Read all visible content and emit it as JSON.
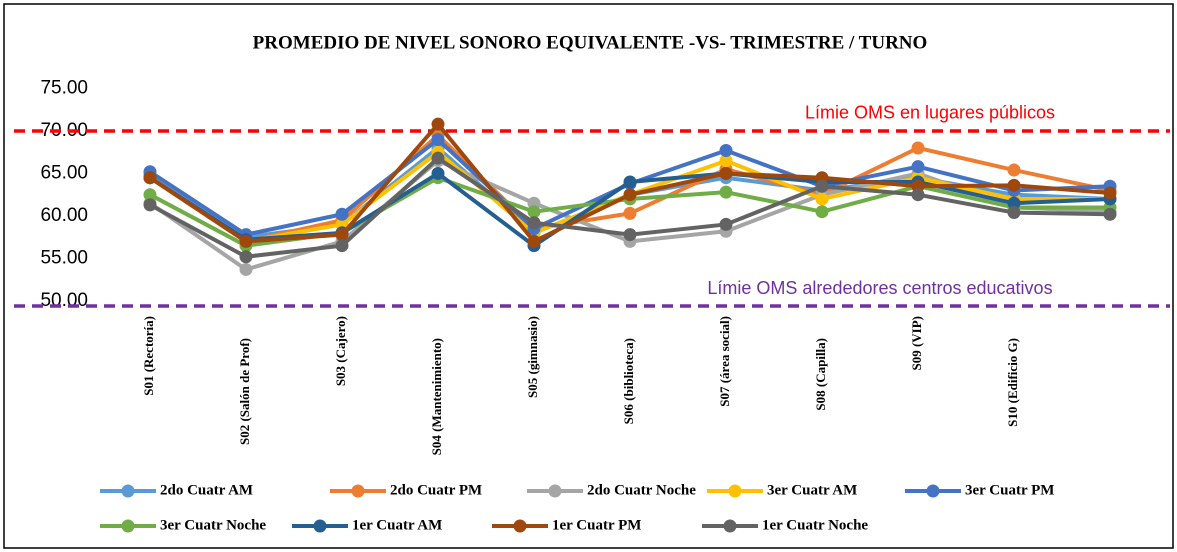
{
  "chart_data": {
    "type": "line",
    "title": "PROMEDIO DE NIVEL SONORO EQUIVALENTE -VS- TRIMESTRE / TURNO",
    "categories": [
      "S01 (Rectoría)",
      "S02 (Salón de Prof)",
      "S03 (Cajero)",
      "S04 (Mantenimiento)",
      "S05 (gimnasio)",
      "S06 (biblioteca)",
      "S07 (área social)",
      "S08 (Capilla)",
      "S09 (VIP)",
      "S10 (Edificio G)",
      null
    ],
    "ylim": [
      49.4,
      76
    ],
    "yticks": [
      {
        "value": 50,
        "label": "50.00"
      },
      {
        "value": 55,
        "label": "55.00"
      },
      {
        "value": 60,
        "label": "60.00"
      },
      {
        "value": 65,
        "label": "65.00"
      },
      {
        "value": 70,
        "label": "70.00"
      },
      {
        "value": 75,
        "label": "75.00"
      }
    ],
    "grid": false,
    "legend": "bottom",
    "reference_lines": [
      {
        "value": 70,
        "label": "Límie OMS en lugares públicos",
        "color": "#ff0000"
      },
      {
        "value": 49.4,
        "label": "Límie OMS alrededores centros educativos",
        "color": "#7030a0"
      }
    ],
    "series": [
      {
        "name": "2do Cuatr AM",
        "color": "#5b9bd5",
        "values": [
          64.8,
          57.5,
          59,
          68,
          58,
          62.5,
          64.5,
          63,
          64.5,
          62.5,
          62
        ]
      },
      {
        "name": "2do Cuatr PM",
        "color": "#ed7d31",
        "values": [
          64.5,
          57,
          59.5,
          69.5,
          58.5,
          60.3,
          65.5,
          62.5,
          68,
          65.4,
          63
        ]
      },
      {
        "name": "2do Cuatr Noche",
        "color": "#a5a5a5",
        "values": [
          61.5,
          53.7,
          57,
          66.5,
          61.5,
          57,
          58.2,
          62.5,
          65,
          61,
          60.5
        ]
      },
      {
        "name": "3er Cuatr AM",
        "color": "#ffc000",
        "values": [
          64.5,
          57,
          59,
          67.5,
          58,
          62.5,
          66.5,
          62,
          64.5,
          62,
          62
        ]
      },
      {
        "name": "3er  Cuatr PM",
        "color": "#4472c4",
        "values": [
          65.2,
          57.8,
          60.2,
          69,
          58.5,
          63.8,
          67.7,
          63.5,
          65.8,
          63,
          63.5
        ]
      },
      {
        "name": "3er  Cuatr Noche",
        "color": "#70ad47",
        "values": [
          62.5,
          56.5,
          58,
          64.5,
          60.5,
          62,
          62.8,
          60.5,
          63.5,
          61,
          61
        ]
      },
      {
        "name": "1er Cuatr AM",
        "color": "#255e91",
        "values": [
          64.5,
          57.2,
          58,
          65,
          56.5,
          64,
          65,
          64,
          64,
          61.5,
          62
        ]
      },
      {
        "name": "1er  Cuatr PM",
        "color": "#9e480e",
        "values": [
          64.5,
          57,
          57.8,
          70.8,
          57,
          62.5,
          65,
          64.5,
          63.5,
          63.6,
          62.7
        ]
      },
      {
        "name": "1er  Cuatr Noche",
        "color": "#636363",
        "values": [
          61.3,
          55.2,
          56.5,
          66.8,
          59.2,
          57.8,
          59,
          63.5,
          62.5,
          60.4,
          60.2
        ]
      }
    ]
  }
}
